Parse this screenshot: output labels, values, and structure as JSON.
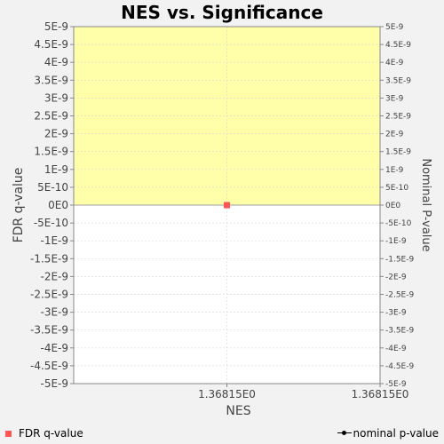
{
  "chart_data": {
    "type": "scatter",
    "title": "NES vs. Significance",
    "xlabel": "NES",
    "ylabel_left": "FDR q-value",
    "ylabel_right": "Nominal P-value",
    "x_tick_labels": [
      "1.36815E0",
      "1.36815E0"
    ],
    "y_ticks_left": [
      "5E-9",
      "4.5E-9",
      "4E-9",
      "3.5E-9",
      "3E-9",
      "2.5E-9",
      "2E-9",
      "1.5E-9",
      "1E-9",
      "5E-10",
      "0E0",
      "-5E-10",
      "-1E-9",
      "-1.5E-9",
      "-2E-9",
      "-2.5E-9",
      "-3E-9",
      "-3.5E-9",
      "-4E-9",
      "-4.5E-9",
      "-5E-9"
    ],
    "y_ticks_right": [
      "5E-9",
      "4.5E-9",
      "4E-9",
      "3.5E-9",
      "3E-9",
      "2.5E-9",
      "2E-9",
      "1.5E-9",
      "1E-9",
      "5E-10",
      "0E0",
      "-5E-10",
      "-1E-9",
      "-1.5E-9",
      "-2E-9",
      "-2.5E-9",
      "-3E-9",
      "-3.5E-9",
      "-4E-9",
      "-4.5E-9",
      "-5E-9"
    ],
    "ylim": [
      -5e-09,
      5e-09
    ],
    "xlim": [
      1.36814,
      1.36816
    ],
    "significance_region": [
      0,
      5e-09
    ],
    "grid": true,
    "series": [
      {
        "name": "FDR q-value",
        "marker": "square",
        "color": "#ff5555",
        "points": [
          {
            "x": 1.36815,
            "y": 0
          }
        ]
      },
      {
        "name": "nominal p-value",
        "marker": "circle-line",
        "color": "#000000",
        "points": []
      }
    ],
    "legend": [
      {
        "label": "FDR q-value",
        "position": "bottom-left"
      },
      {
        "label": "nominal p-value",
        "position": "bottom-right"
      }
    ],
    "colors": {
      "background": "#f2f2f2",
      "plot_background": "#ffffff",
      "significance_fill": "#ffffaa",
      "grid": "#dcdcdc",
      "axis": "#888888"
    }
  }
}
